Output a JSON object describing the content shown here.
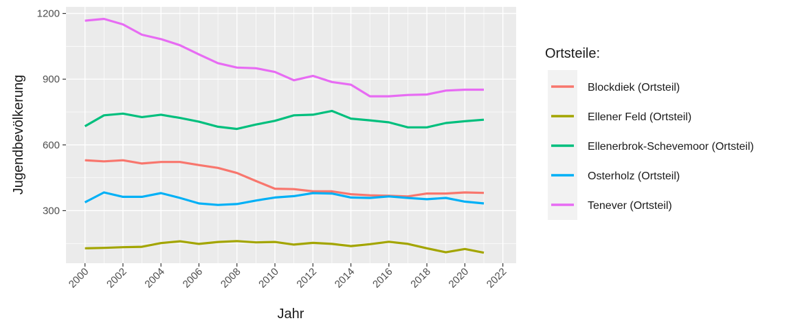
{
  "chart_data": {
    "type": "line",
    "title": "",
    "xlabel": "Jahr",
    "ylabel": "Jugendbevölkerung",
    "xlim": [
      1999,
      2022.7
    ],
    "ylim": [
      60,
      1230
    ],
    "x_ticks": [
      2000,
      2002,
      2004,
      2006,
      2008,
      2010,
      2012,
      2014,
      2016,
      2018,
      2020,
      2022
    ],
    "y_ticks": [
      300,
      600,
      900,
      1200
    ],
    "grid": true,
    "legend": {
      "title": "Ortsteile:",
      "placement": "right"
    },
    "x": [
      2000,
      2001,
      2002,
      2003,
      2004,
      2005,
      2006,
      2007,
      2008,
      2009,
      2010,
      2011,
      2012,
      2013,
      2014,
      2015,
      2016,
      2017,
      2018,
      2019,
      2020,
      2021
    ],
    "series": [
      {
        "name": "Blockdiek (Ortsteil)",
        "color": "#F8766D",
        "values": [
          530,
          525,
          530,
          515,
          522,
          522,
          508,
          495,
          472,
          435,
          400,
          398,
          388,
          388,
          375,
          370,
          368,
          365,
          378,
          378,
          383,
          381
        ]
      },
      {
        "name": "Ellener Feld (Ortsteil)",
        "color": "#A3A500",
        "values": [
          128,
          130,
          133,
          135,
          152,
          160,
          148,
          157,
          161,
          155,
          157,
          145,
          153,
          148,
          138,
          147,
          158,
          148,
          128,
          110,
          125,
          108
        ]
      },
      {
        "name": "Ellenerbrok-Schevemoor (Ortsteil)",
        "color": "#00BF7D",
        "values": [
          685,
          735,
          743,
          727,
          738,
          723,
          706,
          683,
          673,
          693,
          710,
          735,
          738,
          755,
          720,
          712,
          703,
          680,
          680,
          700,
          708,
          715
        ]
      },
      {
        "name": "Osterholz (Ortsteil)",
        "color": "#00B0F6",
        "values": [
          338,
          383,
          363,
          363,
          380,
          358,
          333,
          326,
          330,
          346,
          360,
          366,
          380,
          378,
          360,
          358,
          365,
          358,
          352,
          358,
          341,
          333
        ]
      },
      {
        "name": "Tenever (Ortsteil)",
        "color": "#E76BF3",
        "values": [
          1167,
          1175,
          1150,
          1103,
          1083,
          1055,
          1013,
          973,
          953,
          950,
          933,
          895,
          915,
          887,
          875,
          822,
          822,
          828,
          830,
          848,
          852,
          852
        ]
      }
    ]
  }
}
